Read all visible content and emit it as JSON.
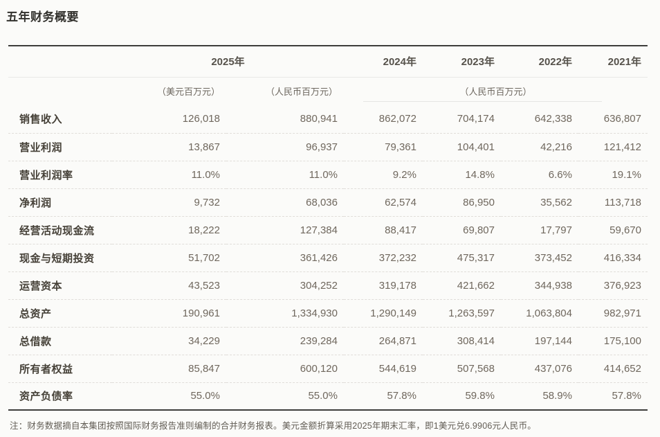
{
  "page": {
    "title": "五年财务概要"
  },
  "table": {
    "year_headers": [
      "2025年",
      "2024年",
      "2023年",
      "2022年",
      "2021年"
    ],
    "unit_headers": {
      "usd": "（美元百万元）",
      "rmb_2025": "（人民币百万元）",
      "rmb_rest": "（人民币百万元）"
    },
    "rows": [
      {
        "label": "销售收入",
        "values": [
          "126,018",
          "880,941",
          "862,072",
          "704,174",
          "642,338",
          "636,807"
        ]
      },
      {
        "label": "营业利润",
        "values": [
          "13,867",
          "96,937",
          "79,361",
          "104,401",
          "42,216",
          "121,412"
        ]
      },
      {
        "label": "营业利润率",
        "values": [
          "11.0%",
          "11.0%",
          "9.2%",
          "14.8%",
          "6.6%",
          "19.1%"
        ]
      },
      {
        "label": "净利润",
        "values": [
          "9,732",
          "68,036",
          "62,574",
          "86,950",
          "35,562",
          "113,718"
        ]
      },
      {
        "label": "经营活动现金流",
        "values": [
          "18,222",
          "127,384",
          "88,417",
          "69,807",
          "17,797",
          "59,670"
        ]
      },
      {
        "label": "现金与短期投资",
        "values": [
          "51,702",
          "361,426",
          "372,232",
          "475,317",
          "373,452",
          "416,334"
        ]
      },
      {
        "label": "运营资本",
        "values": [
          "43,523",
          "304,252",
          "319,178",
          "421,662",
          "344,938",
          "376,923"
        ]
      },
      {
        "label": "总资产",
        "values": [
          "190,961",
          "1,334,930",
          "1,290,149",
          "1,263,597",
          "1,063,804",
          "982,971"
        ]
      },
      {
        "label": "总借款",
        "values": [
          "34,229",
          "239,284",
          "264,871",
          "308,414",
          "197,144",
          "175,100"
        ]
      },
      {
        "label": "所有者权益",
        "values": [
          "85,847",
          "600,120",
          "544,619",
          "507,568",
          "437,076",
          "414,652"
        ]
      },
      {
        "label": "资产负债率",
        "values": [
          "55.0%",
          "55.0%",
          "57.8%",
          "59.8%",
          "58.9%",
          "57.8%"
        ]
      }
    ],
    "note": "注：财务数据摘自本集团按照国际财务报告准则编制的合并财务报表。美元金额折算采用2025年期末汇率，即1美元兑6.9906元人民币。"
  },
  "colors": {
    "background": "#fbfbf9",
    "title_text": "#32312d",
    "header_text": "#56524b",
    "unit_text": "#6d675f",
    "row_label_text": "#454037",
    "value_text": "#6f675d",
    "rule_dark": "#3d3d3b",
    "rule_light": "#e8e8e6",
    "row_divider_dashed": "#e0ddd9",
    "bottom_rule": "#aeaeac"
  }
}
